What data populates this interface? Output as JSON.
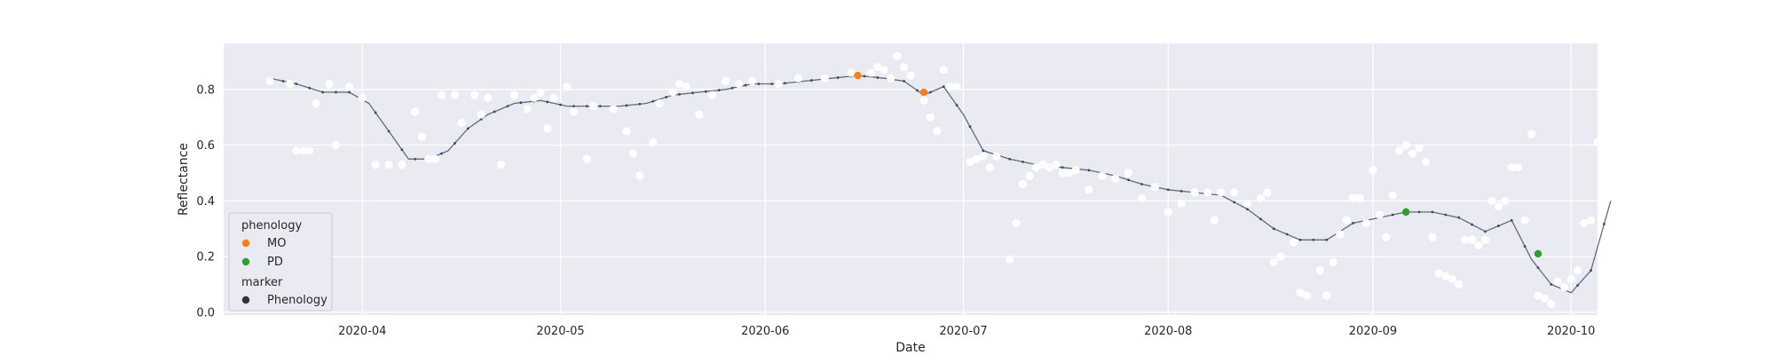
{
  "chart_data": {
    "type": "scatter",
    "title": "",
    "xlabel": "Date",
    "ylabel": "Reflectance",
    "xlim": [
      "2020-03-11",
      "2020-10-05"
    ],
    "ylim": [
      -0.01,
      0.965
    ],
    "x_ticks": [
      "2020-04-01",
      "2020-05-01",
      "2020-06-01",
      "2020-07-01",
      "2020-08-01",
      "2020-09-01",
      "2020-10-01"
    ],
    "x_tick_labels": [
      "2020-04",
      "2020-05",
      "2020-06",
      "2020-07",
      "2020-08",
      "2020-09",
      "2020-10"
    ],
    "y_ticks": [
      0.0,
      0.2,
      0.4,
      0.6,
      0.8
    ],
    "y_tick_labels": [
      "0.0",
      "0.2",
      "0.4",
      "0.6",
      "0.8"
    ],
    "grid": true,
    "background": "#eaeaf2",
    "legend_placement": "bottom-left",
    "legend": {
      "title": "phenology",
      "entries": [
        {
          "label": "MO",
          "color": "#ff7f0e"
        },
        {
          "label": "PD",
          "color": "#2ca02c"
        }
      ],
      "marker_title": "marker",
      "marker_entries": [
        {
          "label": "Phenology",
          "color": "#333333"
        }
      ]
    },
    "series": [
      {
        "kind": "observations",
        "color": "#ffffff",
        "points": [
          [
            "2020-03-18",
            0.83
          ],
          [
            "2020-03-21",
            0.82
          ],
          [
            "2020-03-22",
            0.58
          ],
          [
            "2020-03-23",
            0.58
          ],
          [
            "2020-03-24",
            0.58
          ],
          [
            "2020-03-25",
            0.75
          ],
          [
            "2020-03-27",
            0.82
          ],
          [
            "2020-03-28",
            0.6
          ],
          [
            "2020-03-30",
            0.81
          ],
          [
            "2020-04-01",
            0.77
          ],
          [
            "2020-04-03",
            0.53
          ],
          [
            "2020-04-05",
            0.53
          ],
          [
            "2020-04-07",
            0.53
          ],
          [
            "2020-04-09",
            0.72
          ],
          [
            "2020-04-10",
            0.63
          ],
          [
            "2020-04-11",
            0.55
          ],
          [
            "2020-04-12",
            0.55
          ],
          [
            "2020-04-13",
            0.78
          ],
          [
            "2020-04-15",
            0.78
          ],
          [
            "2020-04-16",
            0.68
          ],
          [
            "2020-04-18",
            0.78
          ],
          [
            "2020-04-19",
            0.71
          ],
          [
            "2020-04-20",
            0.77
          ],
          [
            "2020-04-22",
            0.53
          ],
          [
            "2020-04-24",
            0.78
          ],
          [
            "2020-04-26",
            0.73
          ],
          [
            "2020-04-27",
            0.77
          ],
          [
            "2020-04-28",
            0.79
          ],
          [
            "2020-04-29",
            0.66
          ],
          [
            "2020-04-30",
            0.77
          ],
          [
            "2020-05-02",
            0.81
          ],
          [
            "2020-05-03",
            0.72
          ],
          [
            "2020-05-05",
            0.55
          ],
          [
            "2020-05-06",
            0.74
          ],
          [
            "2020-05-09",
            0.73
          ],
          [
            "2020-05-11",
            0.65
          ],
          [
            "2020-05-12",
            0.57
          ],
          [
            "2020-05-13",
            0.49
          ],
          [
            "2020-05-15",
            0.61
          ],
          [
            "2020-05-16",
            0.75
          ],
          [
            "2020-05-18",
            0.79
          ],
          [
            "2020-05-19",
            0.82
          ],
          [
            "2020-05-20",
            0.81
          ],
          [
            "2020-05-22",
            0.71
          ],
          [
            "2020-05-24",
            0.78
          ],
          [
            "2020-05-26",
            0.83
          ],
          [
            "2020-05-28",
            0.82
          ],
          [
            "2020-05-30",
            0.83
          ],
          [
            "2020-06-03",
            0.82
          ],
          [
            "2020-06-06",
            0.84
          ],
          [
            "2020-06-10",
            0.84
          ],
          [
            "2020-06-14",
            0.86
          ],
          [
            "2020-06-17",
            0.86
          ],
          [
            "2020-06-18",
            0.88
          ],
          [
            "2020-06-19",
            0.87
          ],
          [
            "2020-06-20",
            0.84
          ],
          [
            "2020-06-21",
            0.92
          ],
          [
            "2020-06-22",
            0.88
          ],
          [
            "2020-06-23",
            0.85
          ],
          [
            "2020-06-25",
            0.76
          ],
          [
            "2020-06-26",
            0.7
          ],
          [
            "2020-06-27",
            0.65
          ],
          [
            "2020-06-28",
            0.87
          ],
          [
            "2020-06-29",
            0.81
          ],
          [
            "2020-06-30",
            0.81
          ],
          [
            "2020-07-02",
            0.54
          ],
          [
            "2020-07-03",
            0.55
          ],
          [
            "2020-07-04",
            0.56
          ],
          [
            "2020-07-05",
            0.52
          ],
          [
            "2020-07-06",
            0.56
          ],
          [
            "2020-07-08",
            0.19
          ],
          [
            "2020-07-09",
            0.32
          ],
          [
            "2020-07-10",
            0.46
          ],
          [
            "2020-07-11",
            0.49
          ],
          [
            "2020-07-12",
            0.52
          ],
          [
            "2020-07-13",
            0.53
          ],
          [
            "2020-07-14",
            0.52
          ],
          [
            "2020-07-15",
            0.53
          ],
          [
            "2020-07-16",
            0.5
          ],
          [
            "2020-07-17",
            0.5
          ],
          [
            "2020-07-18",
            0.51
          ],
          [
            "2020-07-20",
            0.44
          ],
          [
            "2020-07-22",
            0.49
          ],
          [
            "2020-07-24",
            0.48
          ],
          [
            "2020-07-26",
            0.5
          ],
          [
            "2020-07-28",
            0.41
          ],
          [
            "2020-07-30",
            0.45
          ],
          [
            "2020-08-01",
            0.36
          ],
          [
            "2020-08-03",
            0.39
          ],
          [
            "2020-08-05",
            0.43
          ],
          [
            "2020-08-07",
            0.43
          ],
          [
            "2020-08-08",
            0.33
          ],
          [
            "2020-08-09",
            0.43
          ],
          [
            "2020-08-11",
            0.43
          ],
          [
            "2020-08-13",
            0.39
          ],
          [
            "2020-08-15",
            0.41
          ],
          [
            "2020-08-16",
            0.43
          ],
          [
            "2020-08-17",
            0.18
          ],
          [
            "2020-08-18",
            0.2
          ],
          [
            "2020-08-20",
            0.25
          ],
          [
            "2020-08-21",
            0.07
          ],
          [
            "2020-08-22",
            0.06
          ],
          [
            "2020-08-24",
            0.15
          ],
          [
            "2020-08-25",
            0.06
          ],
          [
            "2020-08-26",
            0.18
          ],
          [
            "2020-08-27",
            0.28
          ],
          [
            "2020-08-28",
            0.33
          ],
          [
            "2020-08-29",
            0.41
          ],
          [
            "2020-08-30",
            0.41
          ],
          [
            "2020-08-31",
            0.32
          ],
          [
            "2020-09-01",
            0.51
          ],
          [
            "2020-09-02",
            0.35
          ],
          [
            "2020-09-03",
            0.27
          ],
          [
            "2020-09-04",
            0.42
          ],
          [
            "2020-09-05",
            0.58
          ],
          [
            "2020-09-06",
            0.6
          ],
          [
            "2020-09-07",
            0.57
          ],
          [
            "2020-09-08",
            0.59
          ],
          [
            "2020-09-09",
            0.54
          ],
          [
            "2020-09-10",
            0.27
          ],
          [
            "2020-09-11",
            0.14
          ],
          [
            "2020-09-12",
            0.13
          ],
          [
            "2020-09-13",
            0.12
          ],
          [
            "2020-09-14",
            0.1
          ],
          [
            "2020-09-15",
            0.26
          ],
          [
            "2020-09-16",
            0.26
          ],
          [
            "2020-09-17",
            0.24
          ],
          [
            "2020-09-18",
            0.26
          ],
          [
            "2020-09-19",
            0.4
          ],
          [
            "2020-09-20",
            0.38
          ],
          [
            "2020-09-21",
            0.4
          ],
          [
            "2020-09-22",
            0.52
          ],
          [
            "2020-09-23",
            0.52
          ],
          [
            "2020-09-24",
            0.33
          ],
          [
            "2020-09-25",
            0.64
          ],
          [
            "2020-09-26",
            0.06
          ],
          [
            "2020-09-27",
            0.05
          ],
          [
            "2020-09-28",
            0.03
          ],
          [
            "2020-09-29",
            0.11
          ],
          [
            "2020-09-30",
            0.09
          ],
          [
            "2020-10-01",
            0.12
          ],
          [
            "2020-10-02",
            0.15
          ],
          [
            "2020-10-03",
            0.32
          ],
          [
            "2020-10-04",
            0.33
          ],
          [
            "2020-10-05",
            0.61
          ]
        ]
      },
      {
        "kind": "smoothed",
        "color": "#5d6d7e",
        "points": [
          [
            "2020-03-18",
            0.84
          ],
          [
            "2020-03-22",
            0.82
          ],
          [
            "2020-03-26",
            0.79
          ],
          [
            "2020-03-30",
            0.79
          ],
          [
            "2020-04-02",
            0.75
          ],
          [
            "2020-04-05",
            0.65
          ],
          [
            "2020-04-08",
            0.55
          ],
          [
            "2020-04-11",
            0.55
          ],
          [
            "2020-04-14",
            0.58
          ],
          [
            "2020-04-17",
            0.66
          ],
          [
            "2020-04-20",
            0.71
          ],
          [
            "2020-04-24",
            0.75
          ],
          [
            "2020-04-28",
            0.76
          ],
          [
            "2020-05-02",
            0.74
          ],
          [
            "2020-05-06",
            0.74
          ],
          [
            "2020-05-10",
            0.74
          ],
          [
            "2020-05-14",
            0.75
          ],
          [
            "2020-05-18",
            0.78
          ],
          [
            "2020-05-22",
            0.79
          ],
          [
            "2020-05-26",
            0.8
          ],
          [
            "2020-05-30",
            0.82
          ],
          [
            "2020-06-03",
            0.82
          ],
          [
            "2020-06-07",
            0.83
          ],
          [
            "2020-06-11",
            0.84
          ],
          [
            "2020-06-15",
            0.85
          ],
          [
            "2020-06-19",
            0.84
          ],
          [
            "2020-06-22",
            0.83
          ],
          [
            "2020-06-25",
            0.78
          ],
          [
            "2020-06-28",
            0.81
          ],
          [
            "2020-07-01",
            0.71
          ],
          [
            "2020-07-04",
            0.58
          ],
          [
            "2020-07-08",
            0.55
          ],
          [
            "2020-07-12",
            0.53
          ],
          [
            "2020-07-16",
            0.52
          ],
          [
            "2020-07-20",
            0.51
          ],
          [
            "2020-07-24",
            0.49
          ],
          [
            "2020-07-28",
            0.46
          ],
          [
            "2020-08-01",
            0.44
          ],
          [
            "2020-08-05",
            0.43
          ],
          [
            "2020-08-09",
            0.42
          ],
          [
            "2020-08-13",
            0.37
          ],
          [
            "2020-08-17",
            0.3
          ],
          [
            "2020-08-21",
            0.26
          ],
          [
            "2020-08-25",
            0.26
          ],
          [
            "2020-08-29",
            0.32
          ],
          [
            "2020-09-02",
            0.34
          ],
          [
            "2020-09-06",
            0.36
          ],
          [
            "2020-09-10",
            0.36
          ],
          [
            "2020-09-14",
            0.34
          ],
          [
            "2020-09-18",
            0.29
          ],
          [
            "2020-09-22",
            0.33
          ],
          [
            "2020-09-25",
            0.19
          ],
          [
            "2020-09-28",
            0.1
          ],
          [
            "2020-10-01",
            0.07
          ],
          [
            "2020-10-04",
            0.15
          ],
          [
            "2020-10-07",
            0.4
          ]
        ]
      }
    ],
    "phenology_points": [
      {
        "label": "MO",
        "date": "2020-06-15",
        "value": 0.85,
        "color": "#ff7f0e"
      },
      {
        "label": "MO",
        "date": "2020-06-25",
        "value": 0.79,
        "color": "#ff7f0e"
      },
      {
        "label": "PD",
        "date": "2020-09-06",
        "value": 0.36,
        "color": "#2ca02c"
      },
      {
        "label": "PD",
        "date": "2020-09-26",
        "value": 0.21,
        "color": "#2ca02c"
      }
    ]
  }
}
